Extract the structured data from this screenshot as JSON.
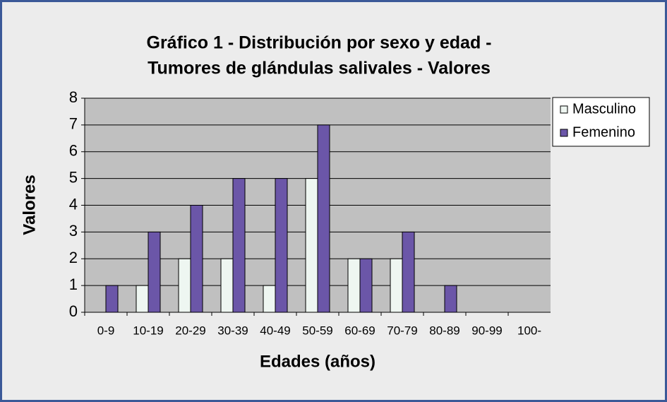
{
  "chart_data": {
    "type": "bar",
    "title": [
      "Gráfico 1 - Distribución por sexo y edad -",
      "Tumores de glándulas salivales - Valores"
    ],
    "x_label": "Edades (años)",
    "y_label": "Valores",
    "categories": [
      "0-9",
      "10-19",
      "20-29",
      "30-39",
      "40-49",
      "50-59",
      "60-69",
      "70-79",
      "80-89",
      "90-99",
      "100-"
    ],
    "series": [
      {
        "name": "Masculino",
        "color": "#eef6f1",
        "values": [
          0,
          1,
          2,
          2,
          1,
          5,
          2,
          2,
          0,
          0,
          0
        ]
      },
      {
        "name": "Femenino",
        "color": "#6b56a8",
        "values": [
          1,
          3,
          4,
          5,
          5,
          7,
          2,
          3,
          1,
          0,
          0
        ]
      }
    ],
    "ylim": [
      0,
      8
    ],
    "yticks": [
      0,
      1,
      2,
      3,
      4,
      5,
      6,
      7,
      8
    ],
    "grid": true,
    "legend": "right"
  }
}
